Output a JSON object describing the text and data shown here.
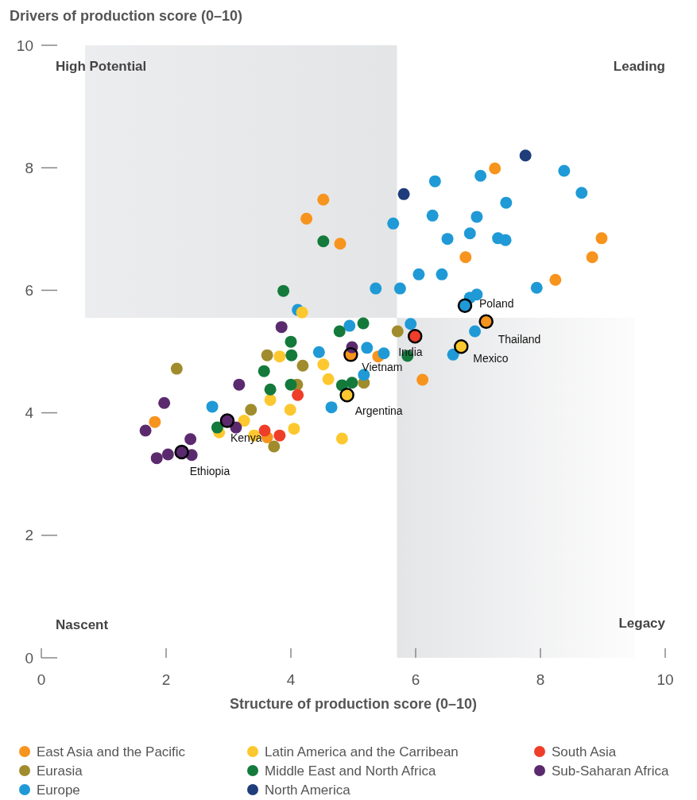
{
  "chart_data": {
    "type": "scatter",
    "xlabel": "Structure of production score (0–10)",
    "ylabel": "Drivers of production score (0–10)",
    "xlim": [
      0,
      10
    ],
    "ylim": [
      0,
      10
    ],
    "xticks": [
      0,
      2,
      4,
      6,
      8,
      10
    ],
    "yticks": [
      0,
      2,
      4,
      6,
      8,
      10
    ],
    "grid": false,
    "legend": "bottom",
    "marker": "circle",
    "bands": [
      {
        "axis": "x",
        "from": 0.7,
        "to": 5.7,
        "color": "#e4e5e7"
      },
      {
        "axis": "x",
        "from": 5.7,
        "to": 9.5,
        "color": "#e4e5e7"
      }
    ],
    "annotations": [
      "High Potential",
      "Leading",
      "Nascent",
      "Legacy",
      {
        "text": "Poland",
        "x": 6.79,
        "y": 5.75
      },
      {
        "text": "Thailand",
        "x": 7.13,
        "y": 5.49
      },
      {
        "text": "India",
        "x": 5.99,
        "y": 5.25
      },
      {
        "text": "Mexico",
        "x": 6.73,
        "y": 5.08
      },
      {
        "text": "Vietnam",
        "x": 4.96,
        "y": 4.95
      },
      {
        "text": "Argentina",
        "x": 4.9,
        "y": 4.29
      },
      {
        "text": "Kenya",
        "x": 2.98,
        "y": 3.87
      },
      {
        "text": "Ethiopia",
        "x": 2.25,
        "y": 3.36
      }
    ],
    "series": [
      {
        "name": "East Asia and the Pacific",
        "color": "#f7941d",
        "x": [
          7.27,
          8.98,
          8.83,
          8.24,
          6.8,
          4.52,
          4.25,
          4.79,
          5.4,
          6.11,
          1.82,
          3.62,
          7.13,
          4.96
        ],
        "values": [
          7.99,
          6.85,
          6.54,
          6.17,
          6.54,
          7.48,
          7.17,
          6.76,
          4.92,
          4.54,
          3.85,
          3.6,
          5.49,
          4.95
        ]
      },
      {
        "name": "Eurasia",
        "color": "#a08c2c",
        "x": [
          2.17,
          3.62,
          4.19,
          3.36,
          4.1,
          3.73,
          5.71,
          5.17
        ],
        "values": [
          4.72,
          4.94,
          4.77,
          4.05,
          4.46,
          3.45,
          5.33,
          4.49
        ]
      },
      {
        "name": "Europe",
        "color": "#1f9ad6",
        "x": [
          6.31,
          7.04,
          8.38,
          8.66,
          7.45,
          6.27,
          6.98,
          5.64,
          6.87,
          6.51,
          7.32,
          7.44,
          6.42,
          6.05,
          5.75,
          5.36,
          7.94,
          6.98,
          6.87,
          6.79,
          6.95,
          5.92,
          6.6,
          5.22,
          5.49,
          5.17,
          4.94,
          4.11,
          4.65,
          4.45,
          2.74
        ],
        "values": [
          7.78,
          7.87,
          7.95,
          7.59,
          7.43,
          7.22,
          7.2,
          7.09,
          6.93,
          6.84,
          6.85,
          6.82,
          6.26,
          6.26,
          6.03,
          6.03,
          6.04,
          5.93,
          5.88,
          5.75,
          5.33,
          5.45,
          4.95,
          5.06,
          4.97,
          4.62,
          5.42,
          5.68,
          4.09,
          4.99,
          4.1
        ]
      },
      {
        "name": "Latin America and the Carribean",
        "color": "#fdc82f",
        "x": [
          6.73,
          4.9,
          4.18,
          3.82,
          4.52,
          4.6,
          3.67,
          3.99,
          3.25,
          2.85,
          3.41,
          4.05,
          4.82
        ],
        "values": [
          5.08,
          4.29,
          5.64,
          4.92,
          4.79,
          4.55,
          4.21,
          4.05,
          3.87,
          3.68,
          3.63,
          3.74,
          3.58
        ]
      },
      {
        "name": "Middle East and North Africa",
        "color": "#137a3c",
        "x": [
          4.52,
          3.88,
          4.78,
          4.0,
          4.01,
          3.57,
          3.67,
          4.0,
          4.82,
          4.98,
          2.82,
          5.16,
          5.87
        ],
        "values": [
          6.8,
          5.99,
          5.33,
          5.16,
          4.94,
          4.68,
          4.38,
          4.46,
          4.45,
          4.49,
          3.76,
          5.46,
          4.93
        ]
      },
      {
        "name": "North America",
        "color": "#1f3c7b",
        "x": [
          7.76,
          5.81
        ],
        "values": [
          8.2,
          7.57
        ]
      },
      {
        "name": "South Asia",
        "color": "#ee3e2a",
        "x": [
          5.99,
          4.11,
          3.82,
          3.58
        ],
        "values": [
          5.25,
          4.29,
          3.63,
          3.71
        ]
      },
      {
        "name": "Sub-Saharan Africa",
        "color": "#5b2a6e",
        "x": [
          3.85,
          3.17,
          1.97,
          1.67,
          2.39,
          1.85,
          2.03,
          2.25,
          2.41,
          2.98,
          3.12,
          4.98
        ],
        "values": [
          5.4,
          4.46,
          4.16,
          3.71,
          3.57,
          3.26,
          3.32,
          3.36,
          3.31,
          3.87,
          3.76,
          5.07
        ]
      }
    ]
  }
}
